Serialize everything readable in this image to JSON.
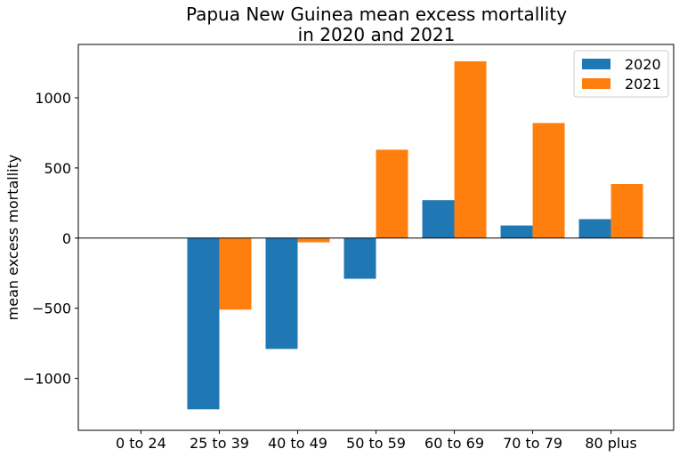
{
  "chart_data": {
    "type": "bar",
    "title": "Papua New Guinea mean excess mortallity",
    "subtitle": "in 2020 and 2021",
    "xlabel": "",
    "ylabel": "mean excess mortallity",
    "categories": [
      "0 to 24",
      "25 to 39",
      "40 to 49",
      "50 to 59",
      "60 to 69",
      "70 to 79",
      "80 plus"
    ],
    "series": [
      {
        "name": "2020",
        "color": "#1f77b4",
        "values": [
          0,
          -1220,
          -790,
          -290,
          270,
          90,
          135
        ]
      },
      {
        "name": "2021",
        "color": "#ff7f0e",
        "values": [
          0,
          -510,
          -30,
          630,
          1260,
          820,
          385
        ]
      }
    ],
    "yticks": [
      -1000,
      -500,
      0,
      500,
      1000
    ],
    "ytick_labels": [
      "−1000",
      "−500",
      "0",
      "500",
      "1000"
    ],
    "ylim": [
      -1370,
      1380
    ],
    "zero_line": true,
    "grid": false,
    "legend_position": "top-right"
  }
}
